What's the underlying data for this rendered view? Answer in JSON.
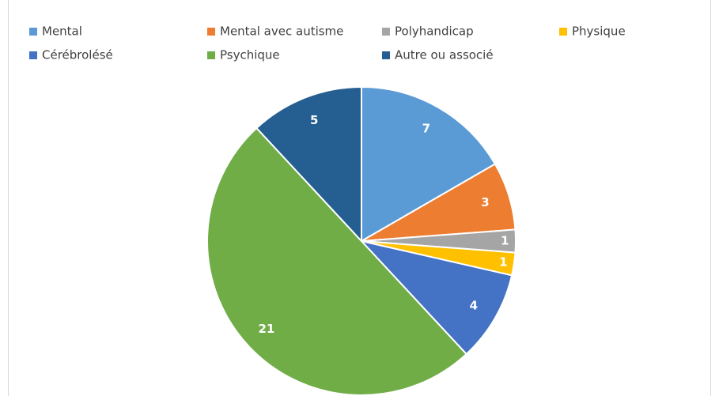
{
  "chart_data": {
    "type": "pie",
    "categories": [
      "Mental",
      "Mental avec autisme",
      "Polyhandicap",
      "Physique",
      "Cérébrolésé",
      "Psychique",
      "Autre ou associé"
    ],
    "values": [
      7,
      3,
      1,
      1,
      4,
      21,
      5
    ],
    "colors": [
      "#5b9bd5",
      "#ed7d31",
      "#a5a5a5",
      "#ffc000",
      "#4472c4",
      "#70ad47",
      "#255e91"
    ],
    "legend": "top"
  }
}
